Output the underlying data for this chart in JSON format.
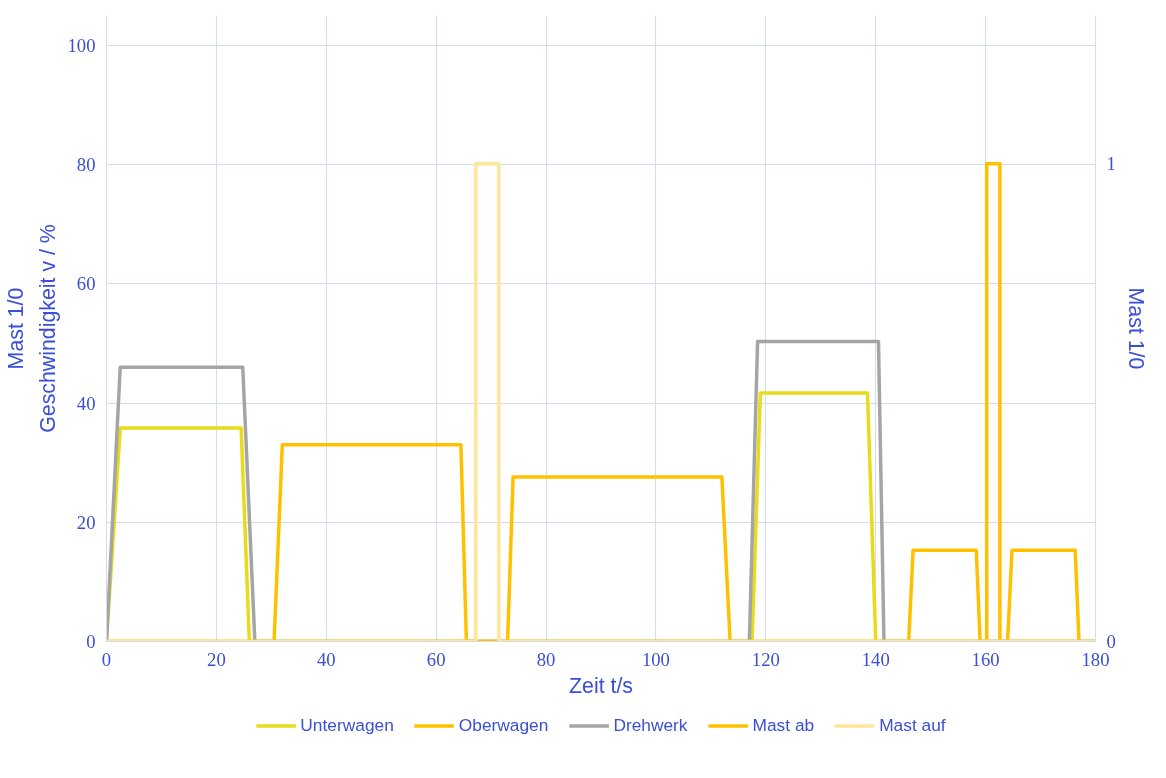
{
  "chart_data": {
    "type": "line",
    "xlabel": "Zeit t/s",
    "ylabel": "Geschwindigkeit v / %",
    "y2label": "Mast 1/0",
    "annotations": [
      "Mast 1/0"
    ],
    "xlim": [
      0,
      180
    ],
    "xticks": [
      0,
      20,
      40,
      60,
      80,
      100,
      120,
      140,
      160,
      180
    ],
    "ylim": [
      0,
      105
    ],
    "yticks": [
      0,
      20,
      40,
      60,
      80,
      100
    ],
    "y2lim": [
      0,
      1.31
    ],
    "y2ticks": [
      0,
      1
    ],
    "grid": true,
    "legend": "bottom",
    "marker": "none",
    "line_style": "solid",
    "series": [
      {
        "name": "Unterwagen",
        "color": "#e8dc1a",
        "x": [
          0,
          2.5,
          24.5,
          26,
          117.5,
          119,
          138.5,
          140,
          180
        ],
        "values": [
          0,
          35.8,
          35.8,
          0,
          0,
          41.7,
          41.7,
          0,
          0
        ]
      },
      {
        "name": "Oberwagen",
        "color": "#ffc000",
        "x": [
          0,
          30.5,
          32,
          64.5,
          65.5,
          73,
          74,
          112,
          113.5,
          146,
          146.8,
          158.3,
          159,
          164,
          164.8,
          176.3,
          177,
          180
        ],
        "values": [
          0,
          0,
          33,
          33,
          0,
          0,
          27.6,
          27.6,
          0,
          0,
          15.3,
          15.3,
          0,
          0,
          15.3,
          15.3,
          0,
          0
        ]
      },
      {
        "name": "Drehwerk",
        "color": "#a5a5a5",
        "x": [
          0,
          2.5,
          24.8,
          27,
          117,
          118.5,
          140.5,
          141.5,
          180
        ],
        "values": [
          0,
          46,
          46,
          0,
          0,
          50.3,
          50.3,
          0,
          0
        ]
      },
      {
        "name": "Mast ab",
        "color": "#ffc000",
        "axis": "y2",
        "x": [
          0,
          160.2,
          160.2,
          162.6,
          162.6,
          180
        ],
        "values": [
          0,
          0,
          1,
          1,
          0,
          0
        ]
      },
      {
        "name": "Mast auf",
        "color": "#ffe699",
        "axis": "y2",
        "x": [
          0,
          67.2,
          67.2,
          71.4,
          71.4,
          180
        ],
        "values": [
          0,
          0,
          1,
          1,
          0,
          0
        ]
      }
    ]
  }
}
